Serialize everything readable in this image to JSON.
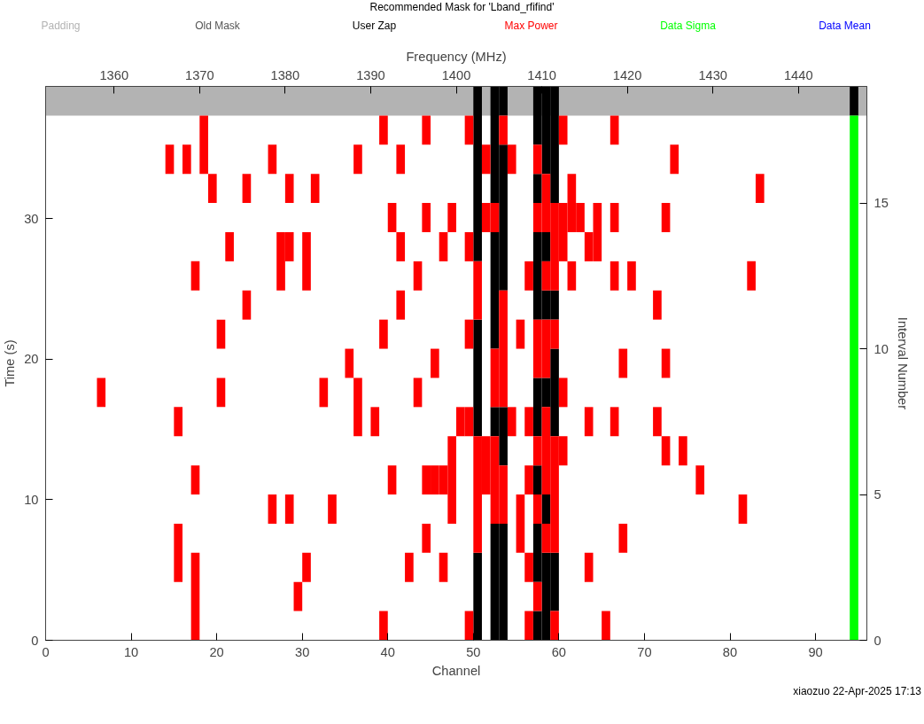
{
  "chart_data": {
    "type": "bar",
    "title": "Recommended Mask for 'Lband_rfifind'",
    "xlabel": "Channel",
    "x2label": "Frequency (MHz)",
    "ylabel": "Time (s)",
    "y2label": "Interval Number",
    "xlim": [
      0,
      96
    ],
    "xticks": [
      0,
      10,
      20,
      30,
      40,
      50,
      60,
      70,
      80,
      90
    ],
    "x2lim": [
      1352,
      1448
    ],
    "x2ticks": [
      1360,
      1370,
      1380,
      1390,
      1400,
      1410,
      1420,
      1430,
      1440
    ],
    "ylim": [
      0,
      39.4
    ],
    "yticks": [
      0,
      10,
      20,
      30
    ],
    "y2lim": [
      0,
      19
    ],
    "y2ticks": [
      0,
      5,
      10,
      15
    ],
    "annotations": [
      "xiaozuo 22-Apr-2025 17:13"
    ],
    "bands": [
      {
        "axis": "y2",
        "from": 18,
        "to": 19,
        "label": "Padding",
        "color": "#b3b3b3"
      }
    ],
    "series": [
      {
        "name": "Old Mask",
        "color": "#555555",
        "axis": "y2"
      },
      {
        "name": "User Zap",
        "color": "#000000",
        "axis": "y2",
        "x": [
          50.5,
          52.5,
          53.5,
          57.5,
          58.5,
          59.5,
          94.5
        ],
        "base": [
          0,
          0,
          0,
          0,
          0,
          1,
          18
        ],
        "values": [
          3,
          4,
          4,
          1,
          3,
          2,
          1
        ]
      },
      {
        "color": "#000000",
        "axis": "y2",
        "x": [
          50.5,
          52.5,
          53.5,
          57.5,
          58.5,
          59.5
        ],
        "base": [
          7,
          7,
          6,
          2,
          4,
          7
        ],
        "values": [
          4,
          1,
          2,
          2,
          1,
          3
        ]
      },
      {
        "color": "#000000",
        "axis": "y2",
        "x": [
          50.5,
          52.5,
          53.5,
          57.5,
          58.5,
          59.5
        ],
        "base": [
          13,
          10,
          12,
          5,
          8,
          11
        ],
        "values": [
          6,
          4,
          5,
          1,
          1,
          1
        ]
      },
      {
        "color": "#000000",
        "axis": "y2",
        "x": [
          52.5,
          53.5,
          57.5,
          58.5,
          59.5
        ],
        "base": [
          15,
          18,
          7,
          11,
          15
        ],
        "values": [
          4,
          1,
          2,
          1,
          4
        ]
      },
      {
        "color": "#000000",
        "axis": "y2",
        "x": [
          57.5,
          58.5
        ],
        "base": [
          11,
          13
        ],
        "values": [
          3,
          1
        ]
      },
      {
        "color": "#000000",
        "axis": "y2",
        "x": [
          57.5,
          58.5
        ],
        "base": [
          15,
          16
        ],
        "values": [
          1,
          3
        ]
      },
      {
        "color": "#000000",
        "axis": "y2",
        "x": [
          57.5
        ],
        "base": [
          17
        ],
        "values": [
          2
        ]
      },
      {
        "name": "Max Power",
        "color": "#ff0000",
        "axis": "y2",
        "x": [
          6.5,
          14.5,
          15.5,
          16.5,
          17.5,
          18.5,
          19.5,
          20.5,
          21.5,
          23.5,
          26.5,
          27.5,
          28.5,
          29.5,
          30.5,
          31.5,
          32.5,
          33.5,
          35.5,
          36.5,
          38.5,
          39.5,
          40.5,
          41.5,
          42.5,
          43.5,
          44.5,
          45.5,
          46.5,
          47.5,
          48.5,
          49.5,
          50.5,
          51.5,
          52.5,
          53.5,
          54.5,
          55.5,
          56.5,
          57.5,
          58.5,
          59.5,
          60.5,
          61.5,
          62.5,
          63.5,
          64.5,
          65.5,
          66.5,
          67.5,
          68.5,
          71.5,
          72.5,
          73.5,
          74.5,
          76.5,
          81.5,
          82.5,
          83.5
        ],
        "base": [
          8,
          16,
          2,
          16,
          0,
          16,
          15,
          8,
          13,
          11,
          4,
          12,
          4,
          1,
          2,
          15,
          8,
          4,
          9,
          7,
          7,
          0,
          5,
          11,
          2,
          8,
          3,
          5,
          2,
          4,
          7,
          0,
          3,
          5,
          4,
          4,
          7,
          3,
          0,
          1,
          3,
          0,
          6,
          12,
          14,
          2,
          13,
          0,
          7,
          3,
          12,
          7,
          6,
          16,
          6,
          5,
          4,
          12,
          15
        ],
        "values": [
          1,
          1,
          2,
          1,
          3,
          2,
          1,
          1,
          1,
          1,
          1,
          2,
          1,
          1,
          1,
          1,
          1,
          1,
          1,
          2,
          1,
          1,
          1,
          1,
          1,
          1,
          1,
          1,
          1,
          3,
          1,
          1,
          4,
          2,
          3,
          2,
          1,
          2,
          1,
          1,
          1,
          1,
          1,
          1,
          1,
          1,
          2,
          1,
          1,
          1,
          1,
          1,
          1,
          1,
          1,
          1,
          1,
          1,
          1
        ]
      },
      {
        "color": "#ff0000",
        "axis": "y2",
        "x": [
          15.5,
          17.5,
          20.5,
          23.5,
          26.5,
          28.5,
          30.5,
          36.5,
          39.5,
          40.5,
          41.5,
          43.5,
          44.5,
          45.5,
          46.5,
          47.5,
          49.5,
          50.5,
          51.5,
          52.5,
          53.5,
          54.5,
          55.5,
          56.5,
          57.5,
          58.5,
          59.5,
          60.5,
          61.5,
          63.5,
          66.5,
          67.5,
          71.5,
          72.5
        ],
        "base": [
          7,
          5,
          10,
          15,
          16,
          13,
          12,
          16,
          10,
          14,
          13,
          12,
          5,
          9,
          5,
          14,
          7,
          11,
          14,
          8,
          8,
          16,
          10,
          2,
          4,
          5,
          3,
          8,
          14,
          7,
          12,
          9,
          11,
          9
        ],
        "values": [
          1,
          1,
          1,
          1,
          1,
          1,
          2,
          1,
          1,
          1,
          1,
          1,
          1,
          1,
          1,
          1,
          1,
          2,
          1,
          2,
          4,
          1,
          1,
          1,
          1,
          3,
          4,
          1,
          2,
          1,
          1,
          1,
          1,
          1
        ]
      },
      {
        "color": "#ff0000",
        "axis": "y2",
        "x": [
          17.5,
          28.5,
          39.5,
          41.5,
          44.5,
          46.5,
          49.5,
          51.5,
          52.5,
          53.5,
          56.5,
          57.5,
          58.5,
          59.5,
          60.5,
          63.5,
          66.5,
          72.5
        ],
        "base": [
          12,
          15,
          17,
          16,
          14,
          13,
          10,
          16,
          14,
          17,
          5,
          6,
          9,
          10,
          13,
          13,
          14,
          14
        ],
        "values": [
          1,
          1,
          1,
          1,
          1,
          1,
          1,
          1,
          1,
          1,
          1,
          1,
          2,
          1,
          2,
          1,
          1,
          1
        ]
      },
      {
        "color": "#ff0000",
        "axis": "y2",
        "x": [
          44.5,
          49.5,
          56.5,
          57.5,
          58.5,
          59.5,
          60.5,
          66.5
        ],
        "base": [
          17,
          13,
          7,
          9,
          12,
          12,
          17,
          17
        ],
        "values": [
          1,
          1,
          1,
          2,
          1,
          3,
          1,
          1
        ]
      },
      {
        "color": "#ff0000",
        "axis": "y2",
        "x": [
          49.5,
          56.5,
          57.5,
          58.5
        ],
        "base": [
          17,
          12,
          14,
          14
        ],
        "values": [
          1,
          1,
          1,
          2
        ]
      },
      {
        "color": "#ff0000",
        "axis": "y2",
        "x": [
          57.5
        ],
        "base": [
          16
        ],
        "values": [
          1
        ]
      },
      {
        "name": "Data Sigma",
        "color": "#00ff00",
        "axis": "y2",
        "x": [
          94.5
        ],
        "base": [
          0
        ],
        "values": [
          18
        ]
      },
      {
        "name": "Data Mean",
        "color": "#0000ff",
        "axis": "y2"
      }
    ]
  }
}
